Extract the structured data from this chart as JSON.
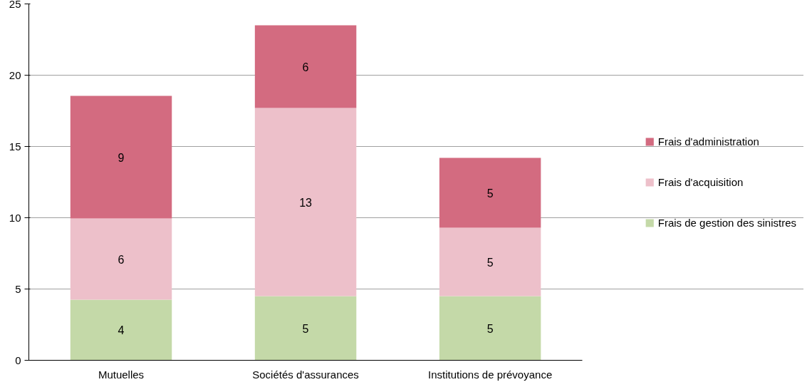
{
  "chart_data": {
    "type": "bar",
    "stacked": true,
    "categories": [
      "Mutuelles",
      "Sociétés d'assurances",
      "Institutions de prévoyance"
    ],
    "series": [
      {
        "name": "Frais de gestion des sinistres",
        "color": "#c4d9a8",
        "values": [
          4.25,
          4.5,
          4.5
        ],
        "value_labels": [
          "4",
          "5",
          "5"
        ]
      },
      {
        "name": "Frais d'acquisition",
        "color": "#edc0ca",
        "values": [
          5.7,
          13.2,
          4.8
        ],
        "value_labels": [
          "6",
          "13",
          "5"
        ]
      },
      {
        "name": "Frais d'administration",
        "color": "#d36b80",
        "values": [
          8.6,
          5.8,
          4.9
        ],
        "value_labels": [
          "9",
          "6",
          "5"
        ]
      }
    ],
    "ylim": [
      0,
      25
    ],
    "yticks": [
      0,
      5,
      10,
      15,
      20,
      25
    ],
    "grid": "y",
    "legend": "right"
  }
}
